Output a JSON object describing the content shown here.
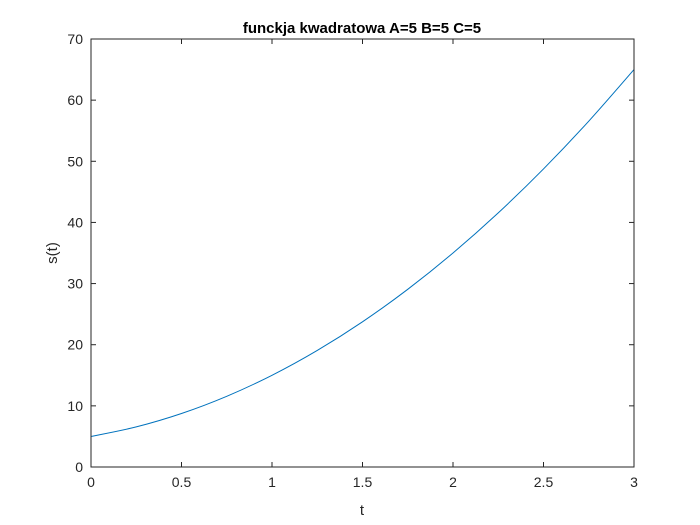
{
  "chart_data": {
    "type": "line",
    "title": "funckja kwadratowa A=5 B=5 C=5",
    "xlabel": "t",
    "ylabel": "s(t)",
    "xlim": [
      0,
      3
    ],
    "ylim": [
      0,
      70
    ],
    "xticks": [
      0,
      0.5,
      1,
      1.5,
      2,
      2.5,
      3
    ],
    "xtick_labels": [
      "0",
      "0.5",
      "1",
      "1.5",
      "2",
      "2.5",
      "3"
    ],
    "yticks": [
      0,
      10,
      20,
      30,
      40,
      50,
      60,
      70
    ],
    "ytick_labels": [
      "0",
      "10",
      "20",
      "30",
      "40",
      "50",
      "60",
      "70"
    ],
    "grid": false,
    "series": [
      {
        "color": "#0072BD",
        "x": [
          0,
          0.25,
          0.5,
          0.75,
          1,
          1.25,
          1.5,
          1.75,
          2,
          2.25,
          2.5,
          2.75,
          3
        ],
        "y": [
          5,
          6.5625,
          8.75,
          11.5625,
          15,
          19.0625,
          23.75,
          29.0625,
          35,
          41.5625,
          48.75,
          56.5625,
          65
        ]
      }
    ]
  }
}
